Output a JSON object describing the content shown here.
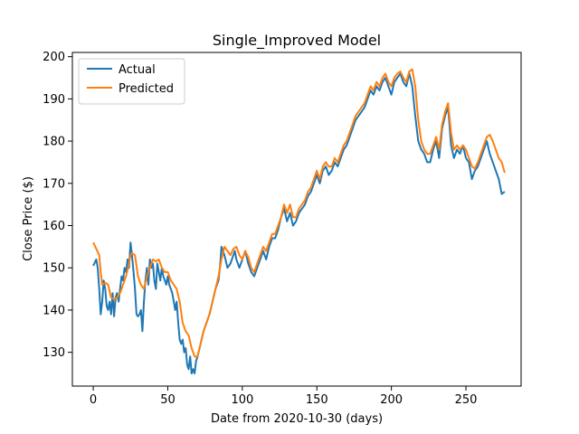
{
  "chart_data": {
    "type": "line",
    "title": "Single_Improved Model",
    "xlabel": "Date from 2020-10-30 (days)",
    "ylabel": "Close Price ($)",
    "xlim": [
      -14,
      287
    ],
    "ylim": [
      122,
      201
    ],
    "xticks": [
      0,
      50,
      100,
      150,
      200,
      250
    ],
    "yticks": [
      130,
      140,
      150,
      160,
      170,
      180,
      190,
      200
    ],
    "grid": false,
    "legend_position": "top-left",
    "series": [
      {
        "name": "Actual",
        "color": "#1f77b4",
        "points": [
          [
            0,
            150.5
          ],
          [
            2,
            152
          ],
          [
            3,
            150
          ],
          [
            4,
            145
          ],
          [
            5,
            139
          ],
          [
            6,
            142
          ],
          [
            7,
            147
          ],
          [
            8,
            145
          ],
          [
            9,
            141
          ],
          [
            10,
            140
          ],
          [
            11,
            142
          ],
          [
            12,
            139
          ],
          [
            13,
            144
          ],
          [
            14,
            138.5
          ],
          [
            15,
            143
          ],
          [
            16,
            144
          ],
          [
            17,
            142
          ],
          [
            18,
            145
          ],
          [
            19,
            148
          ],
          [
            20,
            147
          ],
          [
            21,
            150
          ],
          [
            22,
            149
          ],
          [
            23,
            152
          ],
          [
            24,
            150
          ],
          [
            25,
            156
          ],
          [
            26,
            153
          ],
          [
            27,
            149
          ],
          [
            28,
            145
          ],
          [
            29,
            139
          ],
          [
            30,
            138.5
          ],
          [
            31,
            139
          ],
          [
            32,
            140
          ],
          [
            33,
            135
          ],
          [
            34,
            142
          ],
          [
            35,
            147
          ],
          [
            36,
            150
          ],
          [
            37,
            146
          ],
          [
            38,
            152
          ],
          [
            39,
            150
          ],
          [
            40,
            151
          ],
          [
            41,
            147
          ],
          [
            42,
            145
          ],
          [
            43,
            151
          ],
          [
            44,
            149
          ],
          [
            45,
            147
          ],
          [
            46,
            150
          ],
          [
            47,
            148
          ],
          [
            48,
            147
          ],
          [
            49,
            146
          ],
          [
            50,
            148
          ],
          [
            51,
            146
          ],
          [
            52,
            145
          ],
          [
            53,
            144
          ],
          [
            54,
            142
          ],
          [
            55,
            140
          ],
          [
            56,
            142
          ],
          [
            57,
            137
          ],
          [
            58,
            133
          ],
          [
            59,
            132
          ],
          [
            60,
            133
          ],
          [
            61,
            130
          ],
          [
            62,
            131
          ],
          [
            63,
            127
          ],
          [
            64,
            126
          ],
          [
            65,
            129
          ],
          [
            66,
            125
          ],
          [
            67,
            126
          ],
          [
            68,
            125
          ],
          [
            69,
            128
          ],
          [
            70,
            129
          ],
          [
            72,
            132
          ],
          [
            74,
            135
          ],
          [
            76,
            137
          ],
          [
            78,
            139
          ],
          [
            80,
            142
          ],
          [
            82,
            145
          ],
          [
            84,
            147
          ],
          [
            85,
            150
          ],
          [
            86,
            155
          ],
          [
            88,
            153
          ],
          [
            90,
            150
          ],
          [
            92,
            151
          ],
          [
            94,
            153
          ],
          [
            95,
            154
          ],
          [
            96,
            152
          ],
          [
            98,
            150
          ],
          [
            100,
            152
          ],
          [
            102,
            154
          ],
          [
            104,
            151
          ],
          [
            106,
            149
          ],
          [
            108,
            148
          ],
          [
            110,
            150
          ],
          [
            112,
            152
          ],
          [
            114,
            154
          ],
          [
            116,
            152
          ],
          [
            118,
            155
          ],
          [
            120,
            157
          ],
          [
            122,
            157
          ],
          [
            124,
            159
          ],
          [
            126,
            162
          ],
          [
            128,
            164
          ],
          [
            130,
            161
          ],
          [
            132,
            163
          ],
          [
            134,
            160
          ],
          [
            136,
            161
          ],
          [
            138,
            163
          ],
          [
            140,
            164
          ],
          [
            142,
            165
          ],
          [
            144,
            167
          ],
          [
            146,
            168
          ],
          [
            148,
            170
          ],
          [
            150,
            172
          ],
          [
            152,
            170
          ],
          [
            154,
            173
          ],
          [
            156,
            174
          ],
          [
            158,
            172
          ],
          [
            160,
            173
          ],
          [
            162,
            175
          ],
          [
            164,
            174
          ],
          [
            166,
            176
          ],
          [
            168,
            178
          ],
          [
            170,
            179
          ],
          [
            172,
            181
          ],
          [
            174,
            183
          ],
          [
            176,
            185
          ],
          [
            178,
            186
          ],
          [
            180,
            187
          ],
          [
            182,
            188
          ],
          [
            184,
            190
          ],
          [
            186,
            192
          ],
          [
            188,
            191
          ],
          [
            190,
            193
          ],
          [
            192,
            192
          ],
          [
            194,
            194
          ],
          [
            196,
            195
          ],
          [
            198,
            193
          ],
          [
            200,
            191
          ],
          [
            202,
            194
          ],
          [
            204,
            195
          ],
          [
            206,
            196
          ],
          [
            208,
            194
          ],
          [
            210,
            193
          ],
          [
            212,
            196
          ],
          [
            214,
            193
          ],
          [
            216,
            186
          ],
          [
            218,
            180
          ],
          [
            220,
            178
          ],
          [
            222,
            177
          ],
          [
            224,
            175
          ],
          [
            226,
            175
          ],
          [
            228,
            178
          ],
          [
            230,
            180
          ],
          [
            232,
            176
          ],
          [
            234,
            183
          ],
          [
            236,
            186
          ],
          [
            238,
            188
          ],
          [
            240,
            179
          ],
          [
            242,
            176
          ],
          [
            244,
            178
          ],
          [
            246,
            177
          ],
          [
            248,
            179
          ],
          [
            250,
            176
          ],
          [
            252,
            175
          ],
          [
            254,
            171
          ],
          [
            256,
            173
          ],
          [
            258,
            174
          ],
          [
            260,
            176
          ],
          [
            262,
            178
          ],
          [
            264,
            180
          ],
          [
            266,
            177
          ],
          [
            268,
            175
          ],
          [
            270,
            173
          ],
          [
            272,
            171
          ],
          [
            274,
            167.5
          ],
          [
            276,
            168
          ]
        ]
      },
      {
        "name": "Predicted",
        "color": "#ff7f0e",
        "points": [
          [
            0,
            156
          ],
          [
            2,
            154.5
          ],
          [
            4,
            153
          ],
          [
            5,
            149
          ],
          [
            6,
            146
          ],
          [
            8,
            146.5
          ],
          [
            10,
            146
          ],
          [
            12,
            143
          ],
          [
            14,
            142.5
          ],
          [
            16,
            143
          ],
          [
            18,
            144
          ],
          [
            20,
            146
          ],
          [
            22,
            148
          ],
          [
            24,
            151
          ],
          [
            25,
            153
          ],
          [
            26,
            153.5
          ],
          [
            28,
            153
          ],
          [
            30,
            148
          ],
          [
            32,
            146
          ],
          [
            34,
            145
          ],
          [
            36,
            148
          ],
          [
            38,
            150
          ],
          [
            40,
            152
          ],
          [
            42,
            151.5
          ],
          [
            44,
            152
          ],
          [
            46,
            150
          ],
          [
            48,
            149
          ],
          [
            50,
            149
          ],
          [
            52,
            147
          ],
          [
            54,
            146
          ],
          [
            56,
            145
          ],
          [
            58,
            142
          ],
          [
            60,
            137
          ],
          [
            62,
            135
          ],
          [
            64,
            134
          ],
          [
            66,
            131
          ],
          [
            68,
            129
          ],
          [
            70,
            129
          ],
          [
            72,
            132
          ],
          [
            74,
            135
          ],
          [
            76,
            137
          ],
          [
            78,
            139
          ],
          [
            80,
            142
          ],
          [
            82,
            145
          ],
          [
            84,
            148
          ],
          [
            86,
            152
          ],
          [
            88,
            155
          ],
          [
            90,
            154
          ],
          [
            92,
            153
          ],
          [
            94,
            154.5
          ],
          [
            96,
            155
          ],
          [
            98,
            153
          ],
          [
            100,
            152
          ],
          [
            102,
            154
          ],
          [
            104,
            152.5
          ],
          [
            106,
            150
          ],
          [
            108,
            149
          ],
          [
            110,
            151
          ],
          [
            112,
            153
          ],
          [
            114,
            155
          ],
          [
            116,
            154
          ],
          [
            118,
            156
          ],
          [
            120,
            158
          ],
          [
            122,
            158
          ],
          [
            124,
            160
          ],
          [
            126,
            162
          ],
          [
            128,
            165
          ],
          [
            130,
            163
          ],
          [
            132,
            165
          ],
          [
            134,
            162
          ],
          [
            136,
            162
          ],
          [
            138,
            164
          ],
          [
            140,
            165
          ],
          [
            142,
            166
          ],
          [
            144,
            168
          ],
          [
            146,
            169
          ],
          [
            148,
            171
          ],
          [
            150,
            173
          ],
          [
            152,
            171
          ],
          [
            154,
            174
          ],
          [
            156,
            175
          ],
          [
            158,
            174
          ],
          [
            160,
            174
          ],
          [
            162,
            176
          ],
          [
            164,
            175
          ],
          [
            166,
            177
          ],
          [
            168,
            179
          ],
          [
            170,
            180
          ],
          [
            172,
            182
          ],
          [
            174,
            184
          ],
          [
            176,
            186
          ],
          [
            178,
            187
          ],
          [
            180,
            188
          ],
          [
            182,
            189
          ],
          [
            184,
            191
          ],
          [
            186,
            193
          ],
          [
            188,
            192
          ],
          [
            190,
            194
          ],
          [
            192,
            193
          ],
          [
            194,
            195
          ],
          [
            196,
            196
          ],
          [
            198,
            194
          ],
          [
            200,
            193
          ],
          [
            202,
            195
          ],
          [
            204,
            196
          ],
          [
            206,
            196.5
          ],
          [
            208,
            195
          ],
          [
            210,
            194
          ],
          [
            212,
            196.5
          ],
          [
            214,
            197
          ],
          [
            216,
            193
          ],
          [
            218,
            185
          ],
          [
            220,
            180
          ],
          [
            222,
            178
          ],
          [
            224,
            177
          ],
          [
            226,
            177
          ],
          [
            228,
            179
          ],
          [
            230,
            181
          ],
          [
            232,
            178
          ],
          [
            234,
            184
          ],
          [
            236,
            187
          ],
          [
            238,
            189
          ],
          [
            240,
            182
          ],
          [
            242,
            178
          ],
          [
            244,
            179
          ],
          [
            246,
            178
          ],
          [
            248,
            179
          ],
          [
            250,
            178
          ],
          [
            252,
            176
          ],
          [
            254,
            174
          ],
          [
            256,
            173.5
          ],
          [
            258,
            175
          ],
          [
            260,
            177
          ],
          [
            262,
            179
          ],
          [
            264,
            181
          ],
          [
            266,
            181.5
          ],
          [
            268,
            180
          ],
          [
            270,
            178
          ],
          [
            272,
            176
          ],
          [
            274,
            175
          ],
          [
            276,
            172.5
          ]
        ]
      }
    ]
  }
}
